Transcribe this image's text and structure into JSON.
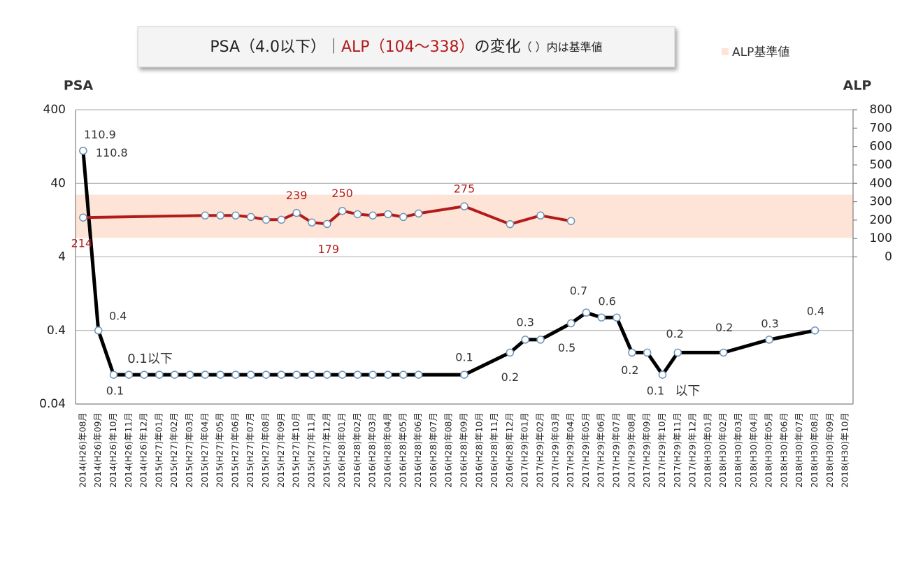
{
  "chart_data": {
    "type": "line",
    "title_parts": [
      "PSA（4.0以下）｜",
      "ALP（104～338）",
      "の変化",
      "（ ）内は基準値"
    ],
    "categories": [
      "2014(H26)年08月",
      "2014(H26)年09月",
      "2014(H26)年10月",
      "2014(H26)年11月",
      "2014(H26)年12月",
      "2015(H27)年01月",
      "2015(H27)年02月",
      "2015(H27)年03月",
      "2015(H27)年04月",
      "2015(H27)年05月",
      "2015(H27)年06月",
      "2015(H27)年07月",
      "2015(H27)年08月",
      "2015(H27)年09月",
      "2015(H27)年10月",
      "2015(H27)年11月",
      "2015(H27)年12月",
      "2016(H28)年01月",
      "2016(H28)年02月",
      "2016(H28)年03月",
      "2016(H28)年04月",
      "2016(H28)年05月",
      "2016(H28)年06月",
      "2016(H28)年07月",
      "2016(H28)年08月",
      "2016(H28)年09月",
      "2016(H28)年10月",
      "2016(H28)年11月",
      "2016(H28)年12月",
      "2017(H29)年01月",
      "2017(H29)年02月",
      "2017(H29)年03月",
      "2017(H29)年04月",
      "2017(H29)年05月",
      "2017(H29)年06月",
      "2017(H29)年07月",
      "2017(H29)年08月",
      "2017(H29)年09月",
      "2017(H29)年10月",
      "2017(H29)年11月",
      "2017(H29)年12月",
      "2018(H30)年01月",
      "2018(H30)年02月",
      "2018(H30)年03月",
      "2018(H30)年04月",
      "2018(H30)年05月",
      "2018(H30)年06月",
      "2018(H30)年07月",
      "2018(H30)年08月",
      "2018(H30)年09月",
      "2018(H30)年10月"
    ],
    "ylim": [
      0.04,
      400
    ],
    "yticks": [
      0.04,
      0.4,
      4,
      40,
      400
    ],
    "log_y": true,
    "y2lim": [
      -800,
      800
    ],
    "y2ticks": [
      0,
      100,
      200,
      300,
      400,
      500,
      600,
      700,
      800
    ],
    "grid": true,
    "band": {
      "name": "ALP基準値",
      "range": [
        104,
        338
      ],
      "color": "#fde4d6",
      "axis": "y2"
    },
    "series": [
      {
        "name": "PSA",
        "color": "#000000",
        "x": [
          "2014(H26)年08月",
          "2014(H26)年08月",
          "2014(H26)年09月",
          "2014(H26)年10月",
          "2014(H26)年11月",
          "2014(H26)年12月",
          "2015(H27)年01月",
          "2015(H27)年02月",
          "2015(H27)年03月",
          "2015(H27)年04月",
          "2015(H27)年05月",
          "2015(H27)年06月",
          "2015(H27)年07月",
          "2015(H27)年08月",
          "2015(H27)年09月",
          "2015(H27)年10月",
          "2015(H27)年11月",
          "2015(H27)年12月",
          "2016(H28)年01月",
          "2016(H28)年02月",
          "2016(H28)年03月",
          "2016(H28)年04月",
          "2016(H28)年05月",
          "2016(H28)年06月",
          "2016(H28)年09月",
          "2016(H28)年12月",
          "2017(H29)年01月",
          "2017(H29)年02月",
          "2017(H29)年04月",
          "2017(H29)年05月",
          "2017(H29)年06月",
          "2017(H29)年07月",
          "2017(H29)年08月",
          "2017(H29)年09月",
          "2017(H29)年10月",
          "2017(H29)年11月",
          "2018(H30)年02月",
          "2018(H30)年05月",
          "2018(H30)年08月"
        ],
        "values": [
          110.9,
          110.8,
          0.4,
          0.1,
          0.1,
          0.1,
          0.1,
          0.1,
          0.1,
          0.1,
          0.1,
          0.1,
          0.1,
          0.1,
          0.1,
          0.1,
          0.1,
          0.1,
          0.1,
          0.1,
          0.1,
          0.1,
          0.1,
          0.1,
          0.1,
          0.2,
          0.3,
          0.3,
          0.5,
          0.7,
          0.6,
          0.6,
          0.2,
          0.2,
          0.1,
          0.2,
          0.2,
          0.3,
          0.4
        ],
        "value_labels": [
          "110.9",
          "110.8",
          "0.4",
          "0.1",
          null,
          null,
          null,
          null,
          null,
          null,
          null,
          null,
          null,
          null,
          null,
          null,
          null,
          null,
          null,
          null,
          null,
          null,
          null,
          null,
          "0.1",
          "0.2",
          "0.3",
          null,
          "0.5",
          "0.7",
          "0.6",
          null,
          "0.2",
          null,
          "0.1",
          "0.2",
          "0.2",
          "0.3",
          "0.4"
        ]
      },
      {
        "name": "ALP",
        "color": "#b31b1b",
        "axis": "y2",
        "x": [
          "2014(H26)年08月",
          "2015(H27)年04月",
          "2015(H27)年05月",
          "2015(H27)年06月",
          "2015(H27)年07月",
          "2015(H27)年08月",
          "2015(H27)年09月",
          "2015(H27)年10月",
          "2015(H27)年11月",
          "2015(H27)年12月",
          "2016(H28)年01月",
          "2016(H28)年02月",
          "2016(H28)年03月",
          "2016(H28)年04月",
          "2016(H28)年05月",
          "2016(H28)年06月",
          "2016(H28)年09月",
          "2016(H28)年12月",
          "2017(H29)年02月",
          "2017(H29)年04月"
        ],
        "values": [
          214,
          225,
          225,
          225,
          217,
          202,
          202,
          239,
          187,
          179,
          250,
          232,
          225,
          232,
          217,
          236,
          275,
          178,
          225,
          195
        ],
        "value_labels": [
          "214",
          null,
          null,
          null,
          null,
          null,
          null,
          "239",
          null,
          "179",
          "250",
          null,
          null,
          null,
          null,
          null,
          "275",
          null,
          null,
          null
        ]
      }
    ],
    "annotations": [
      "0.1以下",
      "以下"
    ]
  }
}
